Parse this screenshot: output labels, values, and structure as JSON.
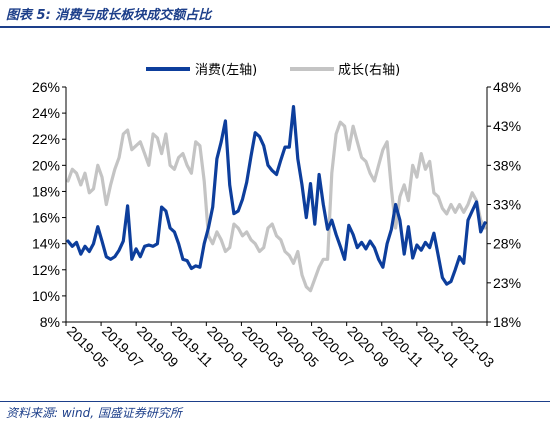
{
  "header": {
    "title": "图表 5:  消费与成长板块成交额占比"
  },
  "footer": {
    "source": "资料来源: wind, 国盛证券研究所"
  },
  "colors": {
    "series1": "#0d3e9c",
    "series2": "#c4c4c4",
    "accent": "#1d3f8a"
  },
  "chart_data": {
    "type": "line",
    "legend_position": "top",
    "grid": false,
    "x_tick_labels": [
      "2019-05",
      "2019-07",
      "2019-09",
      "2019-11",
      "2020-01",
      "2020-03",
      "2020-05",
      "2020-07",
      "2020-09",
      "2020-11",
      "2021-01",
      "2021-03"
    ],
    "y_left": {
      "range": [
        0.08,
        0.26
      ],
      "ticks": [
        "8%",
        "10%",
        "12%",
        "14%",
        "16%",
        "18%",
        "20%",
        "22%",
        "24%",
        "26%"
      ]
    },
    "y_right": {
      "range": [
        0.18,
        0.48
      ],
      "ticks": [
        "18%",
        "23%",
        "28%",
        "33%",
        "38%",
        "43%",
        "48%"
      ]
    },
    "series": [
      {
        "name": "消费(左轴)",
        "axis": "left",
        "values": [
          0.142,
          0.138,
          0.141,
          0.132,
          0.138,
          0.134,
          0.14,
          0.153,
          0.142,
          0.13,
          0.128,
          0.13,
          0.135,
          0.142,
          0.169,
          0.128,
          0.136,
          0.13,
          0.138,
          0.139,
          0.138,
          0.14,
          0.168,
          0.165,
          0.152,
          0.149,
          0.14,
          0.128,
          0.127,
          0.121,
          0.123,
          0.122,
          0.14,
          0.152,
          0.168,
          0.205,
          0.218,
          0.234,
          0.185,
          0.163,
          0.165,
          0.174,
          0.187,
          0.207,
          0.225,
          0.222,
          0.215,
          0.2,
          0.196,
          0.193,
          0.204,
          0.214,
          0.214,
          0.245,
          0.205,
          0.185,
          0.16,
          0.186,
          0.155,
          0.193,
          0.17,
          0.151,
          0.158,
          0.147,
          0.138,
          0.128,
          0.154,
          0.147,
          0.137,
          0.141,
          0.136,
          0.142,
          0.137,
          0.128,
          0.122,
          0.14,
          0.151,
          0.17,
          0.158,
          0.132,
          0.153,
          0.129,
          0.139,
          0.135,
          0.141,
          0.137,
          0.148,
          0.131,
          0.114,
          0.109,
          0.111,
          0.12,
          0.13,
          0.125,
          0.158,
          0.165,
          0.172,
          0.149,
          0.156
        ]
      },
      {
        "name": "成长(右轴)",
        "axis": "right",
        "values": [
          0.36,
          0.375,
          0.37,
          0.355,
          0.37,
          0.345,
          0.35,
          0.38,
          0.365,
          0.33,
          0.355,
          0.375,
          0.39,
          0.42,
          0.425,
          0.4,
          0.405,
          0.41,
          0.395,
          0.38,
          0.42,
          0.415,
          0.395,
          0.42,
          0.38,
          0.375,
          0.39,
          0.395,
          0.38,
          0.37,
          0.41,
          0.405,
          0.36,
          0.29,
          0.28,
          0.295,
          0.285,
          0.27,
          0.275,
          0.305,
          0.3,
          0.29,
          0.295,
          0.285,
          0.28,
          0.27,
          0.275,
          0.3,
          0.305,
          0.29,
          0.285,
          0.27,
          0.265,
          0.255,
          0.27,
          0.24,
          0.225,
          0.22,
          0.235,
          0.25,
          0.26,
          0.26,
          0.37,
          0.42,
          0.435,
          0.43,
          0.4,
          0.43,
          0.41,
          0.39,
          0.385,
          0.37,
          0.36,
          0.38,
          0.4,
          0.41,
          0.35,
          0.3,
          0.34,
          0.355,
          0.335,
          0.38,
          0.365,
          0.395,
          0.375,
          0.385,
          0.345,
          0.34,
          0.325,
          0.318,
          0.33,
          0.32,
          0.33,
          0.32,
          0.33,
          0.345,
          0.335,
          0.31,
          0.3
        ]
      }
    ]
  }
}
